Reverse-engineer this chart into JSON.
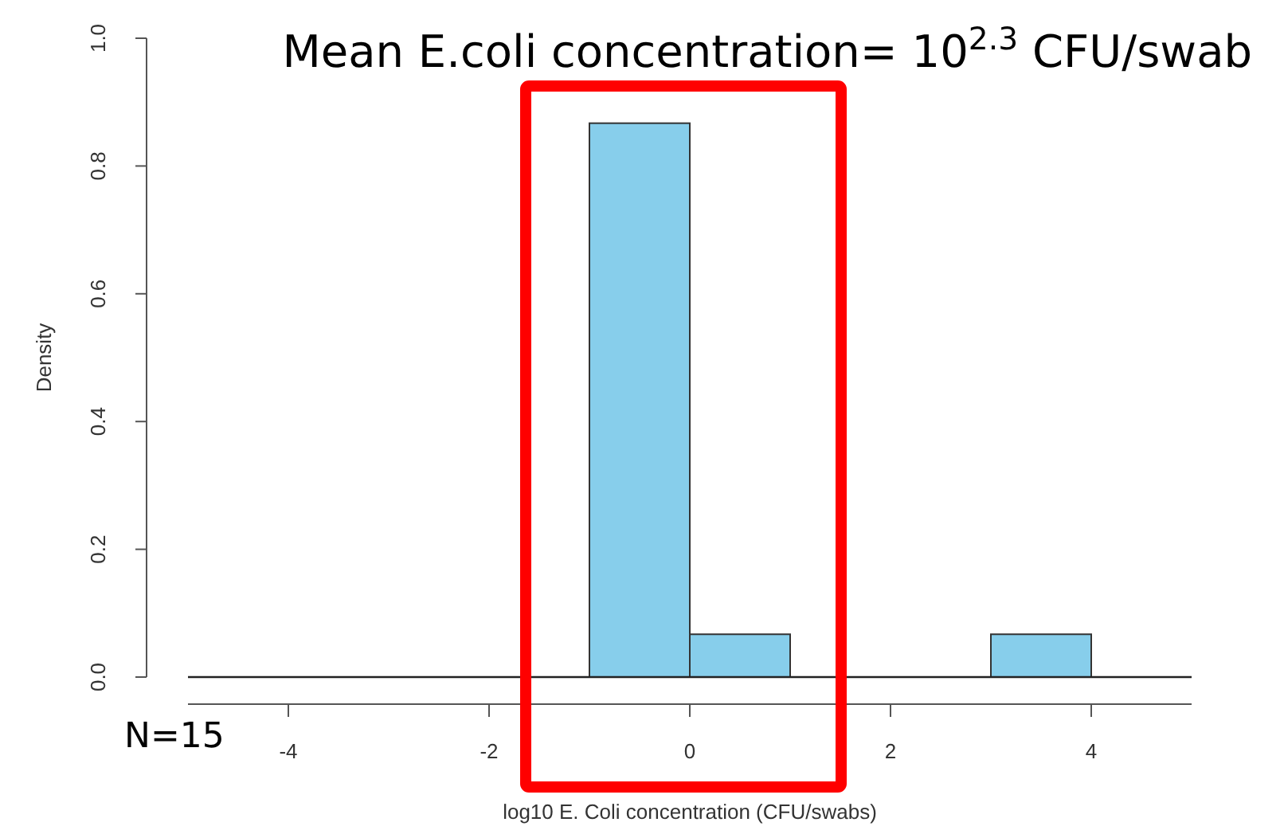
{
  "chart_data": {
    "type": "histogram",
    "title": "Mean E.coli concentration= 10$^{2.3}$ CFU/swab",
    "xlabel": "log10 E. Coli concentration (CFU/swabs)",
    "ylabel": "Density",
    "bins": [
      -1,
      0,
      1,
      2,
      3,
      4
    ],
    "values": [
      0.867,
      0.067,
      0,
      0,
      0.067
    ],
    "color": "#87ceeb",
    "xlim": [
      -5,
      5
    ],
    "xticks": [
      -4,
      -2,
      0,
      2,
      4
    ],
    "ylim": [
      0,
      1
    ],
    "yticks": [
      {
        "value": 0,
        "label": "0.0"
      },
      {
        "value": 0.2,
        "label": "0.2"
      },
      {
        "value": 0.4,
        "label": "0.4"
      },
      {
        "value": 0.6,
        "label": "0.6"
      },
      {
        "value": 0.8,
        "label": "0.8"
      },
      {
        "value": 1,
        "label": "1.0"
      }
    ],
    "grid": false,
    "annotations": [
      "N=15"
    ]
  }
}
